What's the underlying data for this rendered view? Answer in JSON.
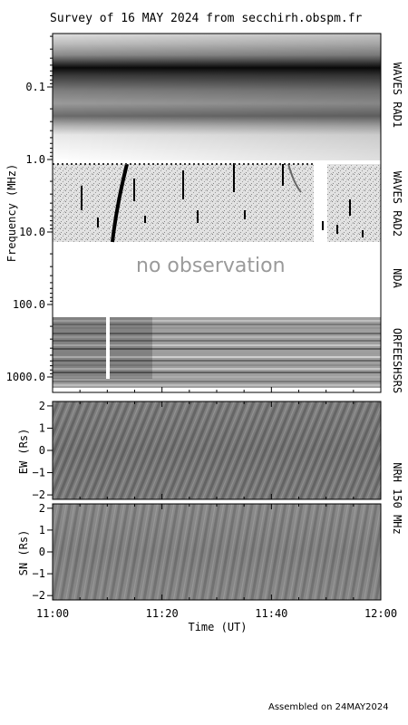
{
  "chart_data": {
    "type": "heatmap",
    "title": "Survey of 16 MAY 2024 from secchirh.obspm.fr",
    "footer": "Assembled on 24MAY2024",
    "xlabel": "Time (UT)",
    "xticks": [
      "11:00",
      "11:20",
      "11:40",
      "12:00"
    ],
    "xlim": [
      "11:00",
      "12:00"
    ],
    "spectrum": {
      "ylabel": "Frequency (MHz)",
      "yscale": "log",
      "yticks": [
        "0.1",
        "1.0",
        "10.0",
        "100.0",
        "1000.0"
      ],
      "ylim": [
        0.02,
        1500
      ],
      "instruments": [
        {
          "name": "WAVES RAD1",
          "freq_range_mhz": [
            0.02,
            1.0
          ]
        },
        {
          "name": "WAVES RAD2",
          "freq_range_mhz": [
            1.0,
            13.0
          ]
        },
        {
          "name": "NDA",
          "freq_range_mhz": [
            13.0,
            150.0
          ],
          "note": "no observation"
        },
        {
          "name": "ORFEESHSRS",
          "freq_range_mhz": [
            150.0,
            1500.0
          ]
        }
      ]
    },
    "nrh_label": "NRH 150 MHz",
    "nrh_panels": [
      {
        "ylabel": "EW (Rs)",
        "yticks": [
          "2",
          "1",
          "0",
          "−1",
          "−2"
        ],
        "ylim": [
          -2.2,
          2.2
        ]
      },
      {
        "ylabel": "SN (Rs)",
        "yticks": [
          "2",
          "1",
          "0",
          "−1",
          "−2"
        ],
        "ylim": [
          -2.2,
          2.2
        ]
      }
    ]
  }
}
